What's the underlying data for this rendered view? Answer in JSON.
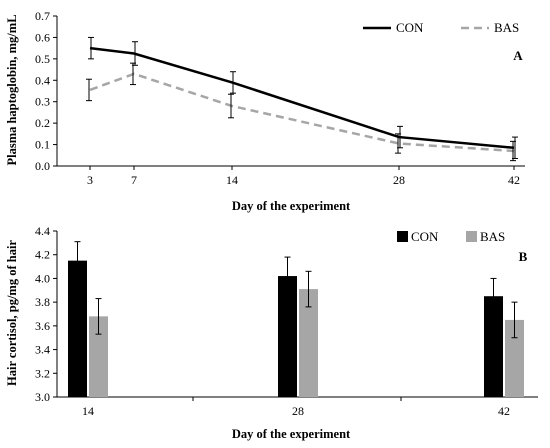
{
  "chart_data": [
    {
      "type": "line",
      "panel_label": "A",
      "xlabel": "Day of the experiment",
      "ylabel": "Plasma haptoglobin, mg/mL",
      "x": [
        3,
        7,
        14,
        28,
        42
      ],
      "xticks": [
        3,
        7,
        14,
        28,
        42
      ],
      "ylim": [
        0,
        0.7
      ],
      "yticks": [
        "0.0",
        "0.1",
        "0.2",
        "0.3",
        "0.4",
        "0.5",
        "0.6",
        "0.7"
      ],
      "legend_position": "top-right",
      "series": [
        {
          "name": "CON",
          "values": [
            0.55,
            0.525,
            0.39,
            0.135,
            0.085
          ],
          "errors": [
            0.05,
            0.055,
            0.05,
            0.05,
            0.05
          ],
          "color": "#000000",
          "style": "solid"
        },
        {
          "name": "BAS",
          "values": [
            0.355,
            0.43,
            0.28,
            0.105,
            0.07
          ],
          "errors": [
            0.05,
            0.05,
            0.055,
            0.045,
            0.045
          ],
          "color": "#a6a6a6",
          "style": "dashed"
        }
      ]
    },
    {
      "type": "bar",
      "panel_label": "B",
      "xlabel": "Day of the experiment",
      "ylabel": "Hair cortisol, pg/mg of hair",
      "categories": [
        "14",
        "28",
        "42"
      ],
      "ylim": [
        3.0,
        4.4
      ],
      "yticks": [
        "3.0",
        "3.2",
        "3.4",
        "3.6",
        "3.8",
        "4.0",
        "4.2",
        "4.4"
      ],
      "legend_position": "top-right",
      "series": [
        {
          "name": "CON",
          "values": [
            4.15,
            4.02,
            3.85
          ],
          "errors": [
            0.16,
            0.16,
            0.15
          ],
          "color": "#000000"
        },
        {
          "name": "BAS",
          "values": [
            3.68,
            3.91,
            3.65
          ],
          "errors": [
            0.15,
            0.15,
            0.15
          ],
          "color": "#a6a6a6"
        }
      ]
    }
  ]
}
